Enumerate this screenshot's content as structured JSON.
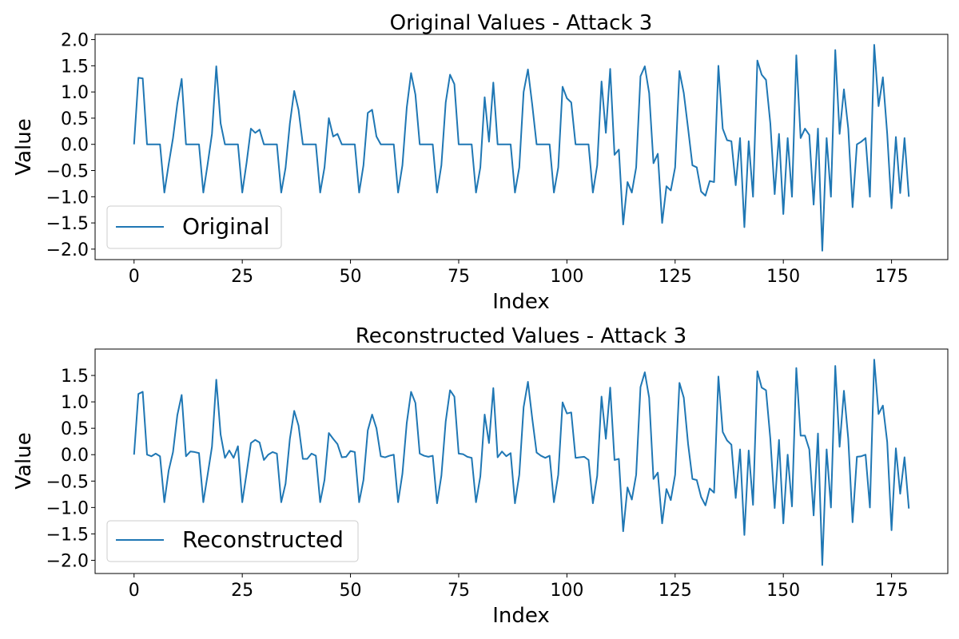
{
  "chart_data": [
    {
      "type": "line",
      "title": "Original Values - Attack 3",
      "xlabel": "Index",
      "ylabel": "Value",
      "xlim": [
        -9,
        188
      ],
      "ylim": [
        -2.2,
        2.1
      ],
      "xticks": [
        0,
        25,
        50,
        75,
        100,
        125,
        150,
        175
      ],
      "xtick_labels": [
        "0",
        "25",
        "50",
        "75",
        "100",
        "125",
        "150",
        "175"
      ],
      "yticks": [
        2.0,
        1.5,
        1.0,
        0.5,
        0.0,
        -0.5,
        -1.0,
        -1.5,
        -2.0
      ],
      "ytick_labels": [
        "2.0",
        "1.5",
        "1.0",
        "0.5",
        "0.0",
        "−0.5",
        "−1.0",
        "−1.5",
        "−2.0"
      ],
      "legend_position": "lower-left",
      "grid": false,
      "series": [
        {
          "name": "Original",
          "color": "#1f77b4",
          "values": [
            0.0,
            1.27,
            1.26,
            0.0,
            0.0,
            0.0,
            0.0,
            -0.92,
            -0.38,
            0.12,
            0.78,
            1.25,
            0.0,
            0.0,
            0.0,
            0.0,
            -0.92,
            -0.38,
            0.2,
            1.49,
            0.4,
            0.0,
            0.0,
            0.0,
            0.0,
            -0.92,
            -0.35,
            0.3,
            0.22,
            0.28,
            0.0,
            0.0,
            0.0,
            0.0,
            -0.92,
            -0.45,
            0.4,
            1.02,
            0.66,
            0.0,
            0.0,
            0.0,
            0.0,
            -0.92,
            -0.44,
            0.5,
            0.15,
            0.2,
            0.0,
            0.0,
            0.0,
            0.0,
            -0.92,
            -0.4,
            0.6,
            0.66,
            0.15,
            0.0,
            0.0,
            0.0,
            0.0,
            -0.92,
            -0.4,
            0.7,
            1.36,
            0.95,
            0.0,
            0.0,
            0.0,
            0.0,
            -0.92,
            -0.4,
            0.8,
            1.33,
            1.15,
            0.0,
            0.0,
            0.0,
            0.0,
            -0.92,
            -0.44,
            0.9,
            0.05,
            1.18,
            0.0,
            0.0,
            0.0,
            0.0,
            -0.92,
            -0.44,
            1.0,
            1.43,
            0.75,
            0.0,
            0.0,
            0.0,
            0.0,
            -0.92,
            -0.44,
            1.1,
            0.88,
            0.8,
            0.0,
            0.0,
            0.0,
            0.0,
            -0.92,
            -0.4,
            1.2,
            0.22,
            1.44,
            -0.2,
            -0.1,
            -1.53,
            -0.72,
            -0.92,
            -0.44,
            1.3,
            1.49,
            0.98,
            -0.36,
            -0.18,
            -1.5,
            -0.8,
            -0.88,
            -0.44,
            1.4,
            0.98,
            0.3,
            -0.4,
            -0.44,
            -0.9,
            -0.98,
            -0.7,
            -0.72,
            1.5,
            0.3,
            0.08,
            0.06,
            -0.78,
            0.12,
            -1.58,
            0.06,
            -1.0,
            1.6,
            1.33,
            1.23,
            0.4,
            -0.95,
            0.2,
            -1.33,
            0.12,
            -1.0,
            1.7,
            0.12,
            0.3,
            0.18,
            -1.15,
            0.3,
            -2.03,
            0.12,
            -1.0,
            1.8,
            0.2,
            1.05,
            0.3,
            -1.2,
            0.0,
            0.05,
            0.12,
            -1.0,
            1.9,
            0.73,
            1.28,
            0.2,
            -1.22,
            0.14,
            -0.93,
            0.12,
            -1.0
          ]
        }
      ]
    },
    {
      "type": "line",
      "title": "Reconstructed Values - Attack 3",
      "xlabel": "Index",
      "ylabel": "Value",
      "xlim": [
        -9,
        188
      ],
      "ylim": [
        -2.25,
        2.0
      ],
      "xticks": [
        0,
        25,
        50,
        75,
        100,
        125,
        150,
        175
      ],
      "xtick_labels": [
        "0",
        "25",
        "50",
        "75",
        "100",
        "125",
        "150",
        "175"
      ],
      "yticks": [
        1.5,
        1.0,
        0.5,
        0.0,
        -0.5,
        -1.0,
        -1.5,
        -2.0
      ],
      "ytick_labels": [
        "1.5",
        "1.0",
        "0.5",
        "0.0",
        "−0.5",
        "−1.0",
        "−1.5",
        "−2.0"
      ],
      "legend_position": "lower-left",
      "grid": false,
      "series": [
        {
          "name": "Reconstructed",
          "color": "#1f77b4",
          "values": [
            0.0,
            1.15,
            1.19,
            0.0,
            -0.03,
            0.02,
            -0.03,
            -0.9,
            -0.3,
            0.05,
            0.75,
            1.13,
            -0.03,
            0.06,
            0.05,
            0.03,
            -0.9,
            -0.38,
            0.15,
            1.42,
            0.38,
            -0.06,
            0.08,
            -0.06,
            0.16,
            -0.9,
            -0.35,
            0.22,
            0.28,
            0.23,
            -0.1,
            0.0,
            0.05,
            0.02,
            -0.9,
            -0.55,
            0.3,
            0.83,
            0.55,
            -0.08,
            -0.08,
            0.02,
            -0.02,
            -0.9,
            -0.48,
            0.41,
            0.3,
            0.2,
            -0.05,
            -0.04,
            0.07,
            0.05,
            -0.9,
            -0.48,
            0.46,
            0.76,
            0.5,
            -0.03,
            -0.05,
            -0.02,
            0.0,
            -0.9,
            -0.36,
            0.6,
            1.19,
            0.98,
            0.02,
            -0.02,
            -0.04,
            -0.02,
            -0.92,
            -0.4,
            0.63,
            1.22,
            1.1,
            0.02,
            0.01,
            -0.04,
            -0.06,
            -0.9,
            -0.41,
            0.76,
            0.22,
            1.26,
            -0.05,
            0.06,
            -0.03,
            0.03,
            -0.92,
            -0.38,
            0.9,
            1.38,
            0.68,
            0.04,
            -0.02,
            -0.06,
            -0.02,
            -0.9,
            -0.38,
            0.99,
            0.78,
            0.8,
            -0.06,
            -0.05,
            -0.04,
            -0.1,
            -0.92,
            -0.4,
            1.1,
            0.3,
            1.27,
            -0.1,
            -0.08,
            -1.45,
            -0.62,
            -0.85,
            -0.38,
            1.28,
            1.56,
            1.08,
            -0.46,
            -0.34,
            -1.3,
            -0.65,
            -0.86,
            -0.38,
            1.36,
            1.08,
            0.2,
            -0.46,
            -0.48,
            -0.8,
            -0.96,
            -0.64,
            -0.72,
            1.48,
            0.43,
            0.27,
            0.19,
            -0.82,
            0.1,
            -1.52,
            0.08,
            -0.95,
            1.58,
            1.27,
            1.22,
            0.3,
            -1.01,
            0.28,
            -1.3,
            0.0,
            -0.98,
            1.64,
            0.36,
            0.36,
            0.1,
            -1.15,
            0.4,
            -2.09,
            0.1,
            -1.0,
            1.68,
            0.15,
            1.21,
            0.3,
            -1.28,
            -0.04,
            -0.03,
            0.0,
            -1.0,
            1.8,
            0.77,
            0.93,
            0.24,
            -1.43,
            0.12,
            -0.74,
            -0.05,
            -1.02
          ]
        }
      ]
    }
  ]
}
